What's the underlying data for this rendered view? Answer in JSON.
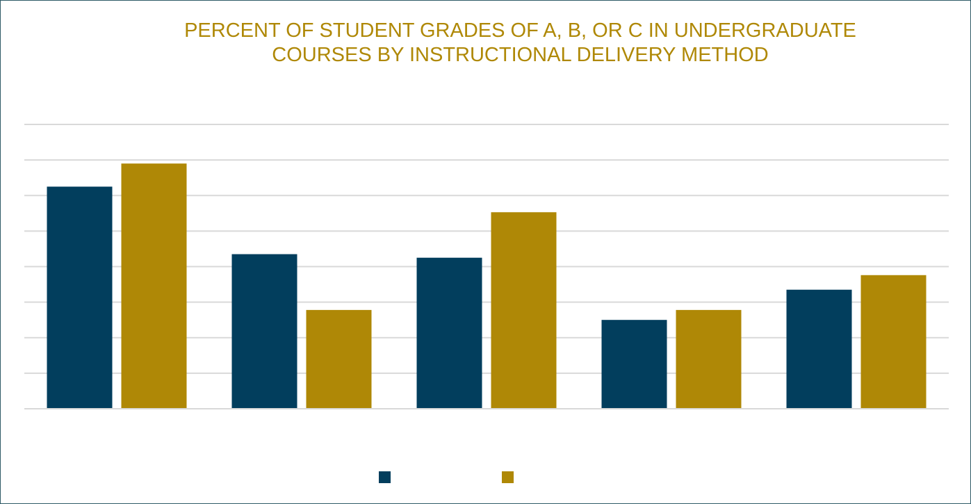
{
  "chart_data": {
    "type": "bar",
    "title": "PERCENT OF STUDENT GRADES OF A, B, OR C IN UNDERGRADUATE\nCOURSES BY INSTRUCTIONAL DELIVERY METHOD",
    "categories": [
      "",
      "",
      "",
      "",
      ""
    ],
    "series": [
      {
        "color": "#023e5d",
        "values": [
          6.25,
          4.35,
          4.25,
          2.5,
          3.35
        ]
      },
      {
        "color": "#af8806",
        "values": [
          6.9,
          2.78,
          5.53,
          2.78,
          3.76
        ]
      }
    ],
    "ylim": [
      0,
      8
    ],
    "grid": true,
    "legend": "bottom-center"
  }
}
